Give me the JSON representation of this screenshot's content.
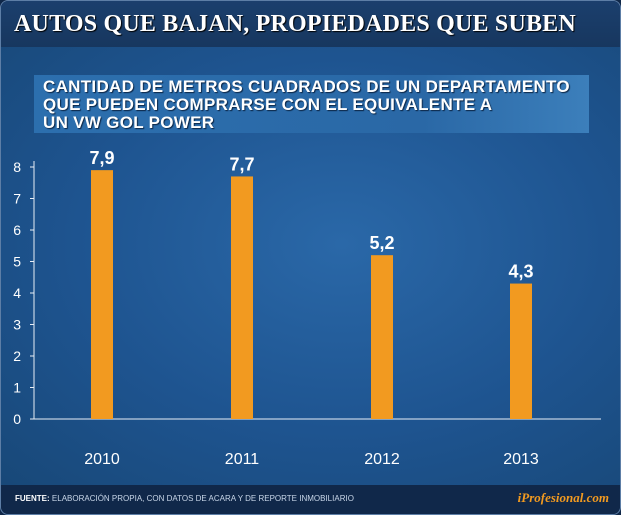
{
  "header": {
    "title": "AUTOS QUE BAJAN, PROPIEDADES QUE SUBEN",
    "subtitle_lines": [
      "CANTIDAD DE METROS CUADRADOS DE UN DEPARTAMENTO",
      "QUE PUEDEN COMPRARSE CON EL EQUIVALENTE A",
      "UN VW GOL POWER"
    ]
  },
  "chart_data": {
    "type": "bar",
    "categories": [
      "2010",
      "2011",
      "2012",
      "2013"
    ],
    "values": [
      7.9,
      7.7,
      5.2,
      4.3
    ],
    "value_labels": [
      "7,9",
      "7,7",
      "5,2",
      "4,3"
    ],
    "ylim": [
      0,
      8
    ],
    "yticks": [
      "0",
      "1",
      "2",
      "3",
      "4",
      "5",
      "6",
      "7",
      "8"
    ],
    "grid": false,
    "bar_color": "#f29a20",
    "background_color": "#1e5490"
  },
  "footer": {
    "source_label": "FUENTE:",
    "source_text": "ELABORACIÓN PROPIA, CON DATOS DE ACARA Y DE REPORTE INMOBILIARIO",
    "brand": "iProfesional.com"
  }
}
